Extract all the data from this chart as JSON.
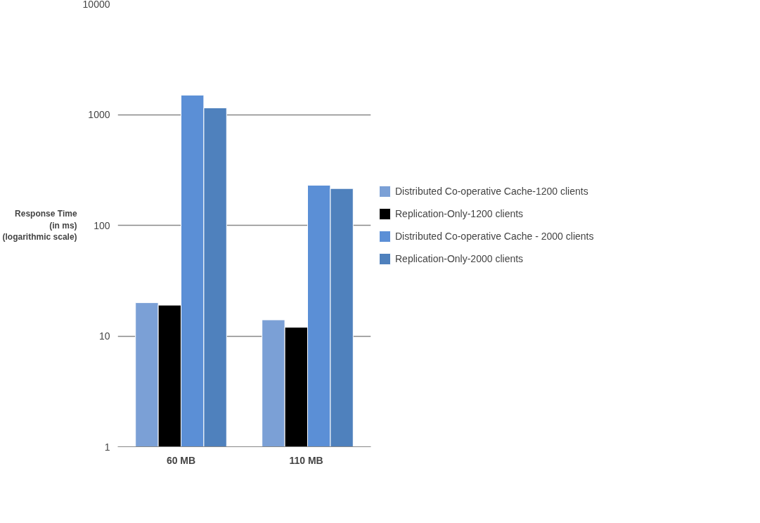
{
  "chart_data": {
    "type": "bar",
    "ylabel": "Response Time\n(in ms)\n(logarithmic scale)",
    "categories": [
      "60 MB",
      "110  MB"
    ],
    "series": [
      {
        "name": "Distributed Co-operative Cache-1200 clients",
        "color": "#7ba0d6",
        "values": [
          20,
          14
        ]
      },
      {
        "name": "Replication-Only-1200 clients",
        "color": "#000000",
        "values": [
          19,
          12
        ]
      },
      {
        "name": "Distributed Co-operative Cache - 2000 clients",
        "color": "#5b8fd6",
        "values": [
          1500,
          230
        ]
      },
      {
        "name": "Replication-Only-2000 clients",
        "color": "#4f81bd",
        "values": [
          1150,
          215
        ]
      }
    ],
    "log": true,
    "ylim": [
      1,
      10000
    ],
    "yticks": [
      1,
      10,
      100,
      1000,
      10000
    ],
    "grid": "y",
    "legend": "right"
  }
}
